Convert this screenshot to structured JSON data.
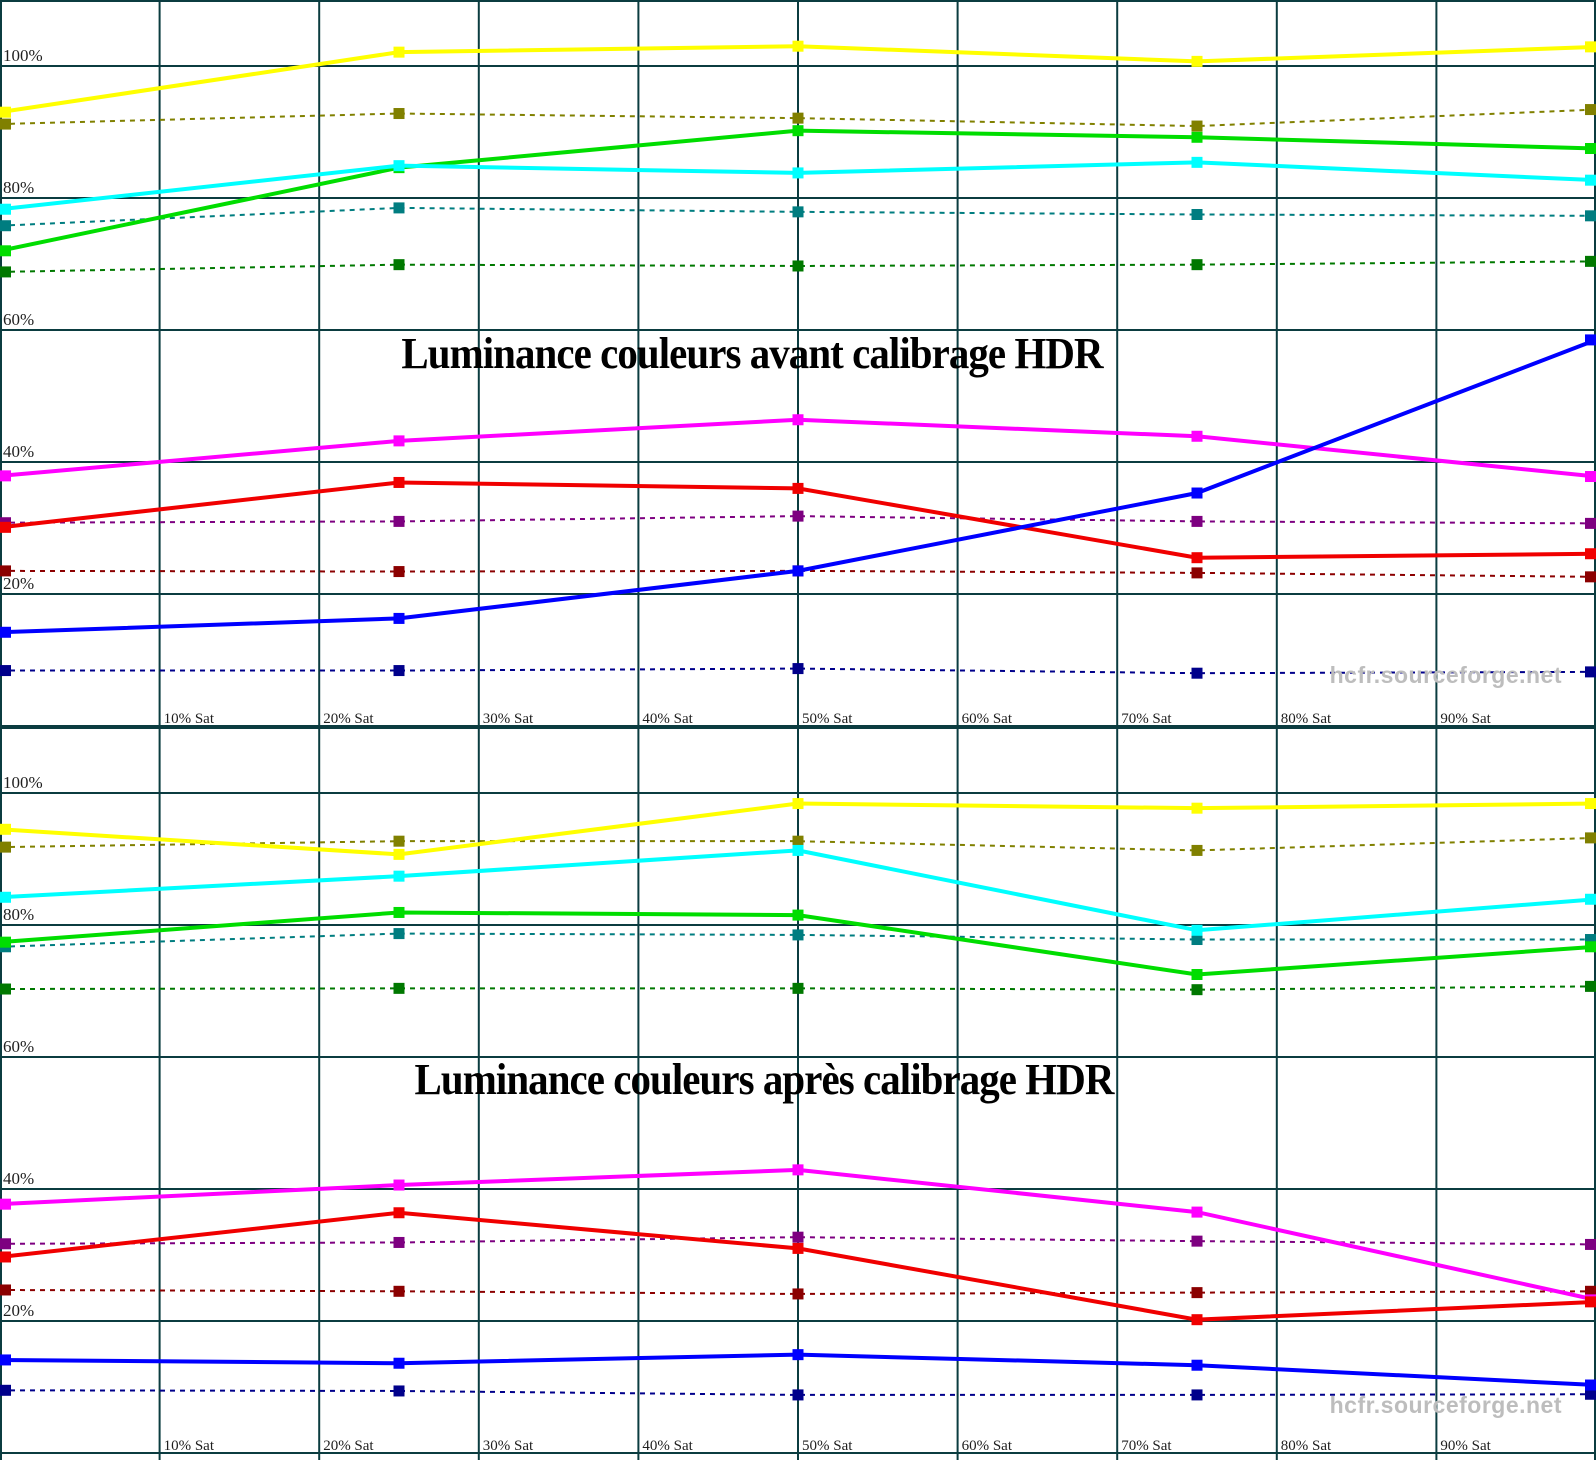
{
  "watermark": "hcfr.sourceforge.net",
  "grid_color": "#0b3c40",
  "axis_label_color": "#1f1f1f",
  "background_color": "#ffffff",
  "chart_data": [
    {
      "type": "line",
      "title": "Luminance couleurs avant calibrage HDR",
      "x": [
        0,
        25,
        50,
        75,
        100
      ],
      "x_ticks": [
        10,
        20,
        30,
        40,
        50,
        60,
        70,
        80,
        90
      ],
      "x_tick_suffix": "% Sat",
      "y_ticks": [
        100,
        80,
        60,
        40,
        20
      ],
      "y_tick_suffix": "%",
      "xlim": [
        0,
        100
      ],
      "ylim": [
        0,
        110
      ],
      "grid": true,
      "legend": "none",
      "series": [
        {
          "name": "yellow-measured",
          "color": "#ffff00",
          "style": "solid",
          "values": [
            93.0,
            102.1,
            103.0,
            100.7,
            102.9
          ]
        },
        {
          "name": "yellow-reference",
          "color": "#808000",
          "style": "dashed",
          "values": [
            91.2,
            92.8,
            92.1,
            90.9,
            93.4
          ]
        },
        {
          "name": "green-measured",
          "color": "#00dd00",
          "style": "solid",
          "values": [
            72.0,
            84.6,
            90.2,
            89.2,
            87.5
          ]
        },
        {
          "name": "green-reference",
          "color": "#007800",
          "style": "dashed",
          "values": [
            68.8,
            69.9,
            69.7,
            69.9,
            70.4
          ]
        },
        {
          "name": "cyan-measured",
          "color": "#00ffff",
          "style": "solid",
          "values": [
            78.3,
            84.9,
            83.8,
            85.4,
            82.7
          ]
        },
        {
          "name": "cyan-reference",
          "color": "#007d80",
          "style": "dashed",
          "values": [
            75.8,
            78.5,
            77.9,
            77.5,
            77.3
          ]
        },
        {
          "name": "magenta-measured",
          "color": "#ff00ff",
          "style": "solid",
          "values": [
            37.9,
            43.2,
            46.4,
            43.9,
            37.8
          ]
        },
        {
          "name": "magenta-reference",
          "color": "#7d0080",
          "style": "dashed",
          "values": [
            30.8,
            31.0,
            31.8,
            31.0,
            30.7
          ]
        },
        {
          "name": "red-measured",
          "color": "#f00000",
          "style": "solid",
          "values": [
            30.1,
            36.9,
            36.0,
            25.5,
            26.1
          ]
        },
        {
          "name": "red-reference",
          "color": "#8b0000",
          "style": "dashed",
          "values": [
            23.5,
            23.4,
            23.5,
            23.2,
            22.6
          ]
        },
        {
          "name": "blue-measured",
          "color": "#0000ff",
          "style": "solid",
          "values": [
            14.2,
            16.3,
            23.5,
            35.3,
            58.5
          ]
        },
        {
          "name": "blue-reference",
          "color": "#00008b",
          "style": "dashed",
          "values": [
            8.4,
            8.4,
            8.7,
            8.0,
            8.2
          ]
        }
      ]
    },
    {
      "type": "line",
      "title": "Luminance couleurs après calibrage HDR",
      "x": [
        0,
        25,
        50,
        75,
        100
      ],
      "x_ticks": [
        10,
        20,
        30,
        40,
        50,
        60,
        70,
        80,
        90
      ],
      "x_tick_suffix": "% Sat",
      "y_ticks": [
        100,
        80,
        60,
        40,
        20
      ],
      "y_tick_suffix": "%",
      "xlim": [
        0,
        100
      ],
      "ylim": [
        0,
        110
      ],
      "grid": true,
      "legend": "none",
      "series": [
        {
          "name": "yellow-measured",
          "color": "#ffff00",
          "style": "solid",
          "values": [
            94.5,
            90.7,
            98.4,
            97.7,
            98.4
          ]
        },
        {
          "name": "yellow-reference",
          "color": "#808000",
          "style": "dashed",
          "values": [
            91.8,
            92.7,
            92.7,
            91.3,
            93.2
          ]
        },
        {
          "name": "green-measured",
          "color": "#00dd00",
          "style": "solid",
          "values": [
            77.4,
            81.9,
            81.5,
            72.5,
            76.7
          ]
        },
        {
          "name": "green-reference",
          "color": "#007800",
          "style": "dashed",
          "values": [
            70.3,
            70.4,
            70.4,
            70.2,
            70.7
          ]
        },
        {
          "name": "cyan-measured",
          "color": "#00ffff",
          "style": "solid",
          "values": [
            84.2,
            87.4,
            91.3,
            79.2,
            83.9
          ]
        },
        {
          "name": "cyan-reference",
          "color": "#007d80",
          "style": "dashed",
          "values": [
            76.7,
            78.7,
            78.5,
            77.8,
            77.8
          ]
        },
        {
          "name": "magenta-measured",
          "color": "#ff00ff",
          "style": "solid",
          "values": [
            37.7,
            40.6,
            42.9,
            36.5,
            23.2
          ]
        },
        {
          "name": "magenta-reference",
          "color": "#7d0080",
          "style": "dashed",
          "values": [
            31.7,
            31.9,
            32.7,
            32.1,
            31.6
          ]
        },
        {
          "name": "red-measured",
          "color": "#f00000",
          "style": "solid",
          "values": [
            29.7,
            36.4,
            31.0,
            20.2,
            22.9
          ]
        },
        {
          "name": "red-reference",
          "color": "#8b0000",
          "style": "dashed",
          "values": [
            24.7,
            24.5,
            24.1,
            24.3,
            24.5
          ]
        },
        {
          "name": "blue-measured",
          "color": "#0000ff",
          "style": "solid",
          "values": [
            14.1,
            13.6,
            14.9,
            13.3,
            10.3
          ]
        },
        {
          "name": "blue-reference",
          "color": "#00008b",
          "style": "dashed",
          "values": [
            9.5,
            9.4,
            8.8,
            8.8,
            8.9
          ]
        }
      ]
    }
  ]
}
